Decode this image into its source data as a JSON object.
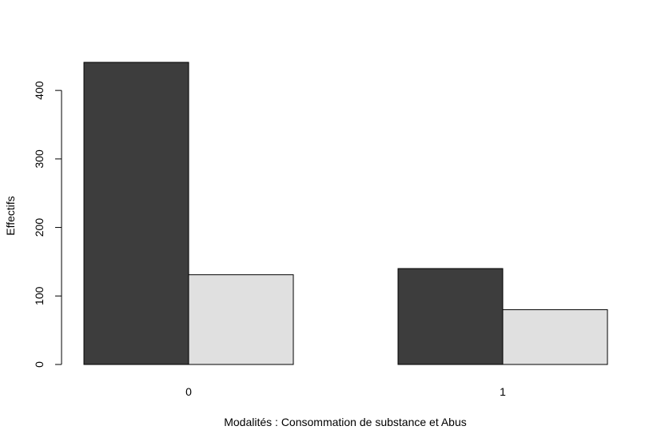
{
  "chart_data": {
    "type": "bar",
    "categories": [
      "0",
      "1"
    ],
    "series": [
      {
        "values": [
          441,
          140
        ],
        "color": "#3d3d3d"
      },
      {
        "values": [
          131,
          80
        ],
        "color": "#e0e0e0"
      }
    ],
    "title": "",
    "xlabel": "Modalités : Consommation de substance et Abus",
    "ylabel": "Effectifs",
    "ylim": [
      0,
      441
    ],
    "yticks": [
      "0",
      "100",
      "200",
      "300",
      "400"
    ],
    "grid": false
  }
}
